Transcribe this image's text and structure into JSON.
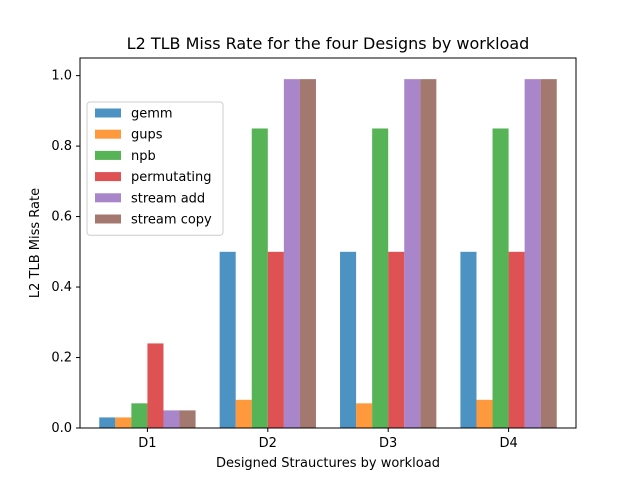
{
  "chart_data": {
    "type": "bar",
    "title": "L2 TLB Miss Rate for the four Designs by workload",
    "xlabel": "Designed Strauctures by workload",
    "ylabel": "L2 TLB Miss Rate",
    "categories": [
      "D1",
      "D2",
      "D3",
      "D4"
    ],
    "ylim": [
      0,
      1.05
    ],
    "yticks": [
      "0.0",
      "0.2",
      "0.4",
      "0.6",
      "0.8",
      "1.0"
    ],
    "grid": false,
    "legend_position": "upper-left",
    "series": [
      {
        "name": "gemm",
        "color": "#1f77b4",
        "values": [
          0.03,
          0.5,
          0.5,
          0.5
        ]
      },
      {
        "name": "gups",
        "color": "#ff7f0e",
        "values": [
          0.03,
          0.08,
          0.07,
          0.08
        ]
      },
      {
        "name": "npb",
        "color": "#2ca02c",
        "values": [
          0.07,
          0.85,
          0.85,
          0.85
        ]
      },
      {
        "name": "permutating",
        "color": "#d62728",
        "values": [
          0.24,
          0.5,
          0.5,
          0.5
        ]
      },
      {
        "name": "stream add",
        "color": "#9467bd",
        "values": [
          0.05,
          0.99,
          0.99,
          0.99
        ]
      },
      {
        "name": "stream copy",
        "color": "#8c564b",
        "values": [
          0.05,
          0.99,
          0.99,
          0.99
        ]
      }
    ]
  }
}
